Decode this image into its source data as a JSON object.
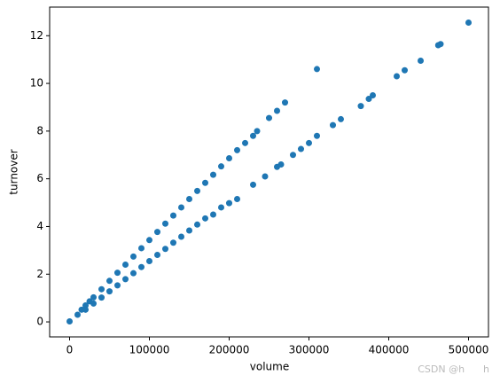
{
  "chart_data": {
    "type": "scatter",
    "x_label": "volume",
    "y_label": "turnover",
    "color": "#1f77b4",
    "x": [
      0,
      10000,
      15000,
      20000,
      25000,
      30000,
      40000,
      50000,
      60000,
      70000,
      80000,
      90000,
      100000,
      110000,
      120000,
      130000,
      140000,
      150000,
      160000,
      170000,
      180000,
      190000,
      200000,
      210000,
      220000,
      230000,
      235000,
      250000,
      260000,
      270000,
      310000,
      20000,
      30000,
      40000,
      50000,
      60000,
      70000,
      80000,
      90000,
      100000,
      110000,
      120000,
      130000,
      140000,
      150000,
      160000,
      170000,
      180000,
      190000,
      200000,
      210000,
      230000,
      245000,
      260000,
      265000,
      280000,
      290000,
      300000,
      310000,
      330000,
      340000,
      365000,
      375000,
      380000,
      410000,
      420000,
      440000,
      462000,
      465000,
      500000
    ],
    "y": [
      0.02,
      0.3,
      0.51,
      0.69,
      0.86,
      1.03,
      1.37,
      1.72,
      2.06,
      2.4,
      2.74,
      3.09,
      3.43,
      3.77,
      4.12,
      4.46,
      4.8,
      5.15,
      5.49,
      5.83,
      6.17,
      6.52,
      6.86,
      7.2,
      7.5,
      7.8,
      8.0,
      8.55,
      8.85,
      9.2,
      10.6,
      0.51,
      0.77,
      1.02,
      1.28,
      1.53,
      1.79,
      2.04,
      2.3,
      2.55,
      2.81,
      3.06,
      3.32,
      3.57,
      3.83,
      4.08,
      4.34,
      4.5,
      4.8,
      4.98,
      5.15,
      5.75,
      6.1,
      6.5,
      6.6,
      7.0,
      7.25,
      7.5,
      7.8,
      8.25,
      8.5,
      9.05,
      9.35,
      9.5,
      10.3,
      10.55,
      10.95,
      11.6,
      11.65,
      12.55
    ],
    "xlim": [
      -25000,
      525000
    ],
    "ylim": [
      -0.63,
      13.2
    ],
    "xticks": [
      0,
      100000,
      200000,
      300000,
      400000,
      500000
    ],
    "yticks": [
      0,
      2,
      4,
      6,
      8,
      10,
      12
    ],
    "watermark": "CSDN @h      h"
  }
}
